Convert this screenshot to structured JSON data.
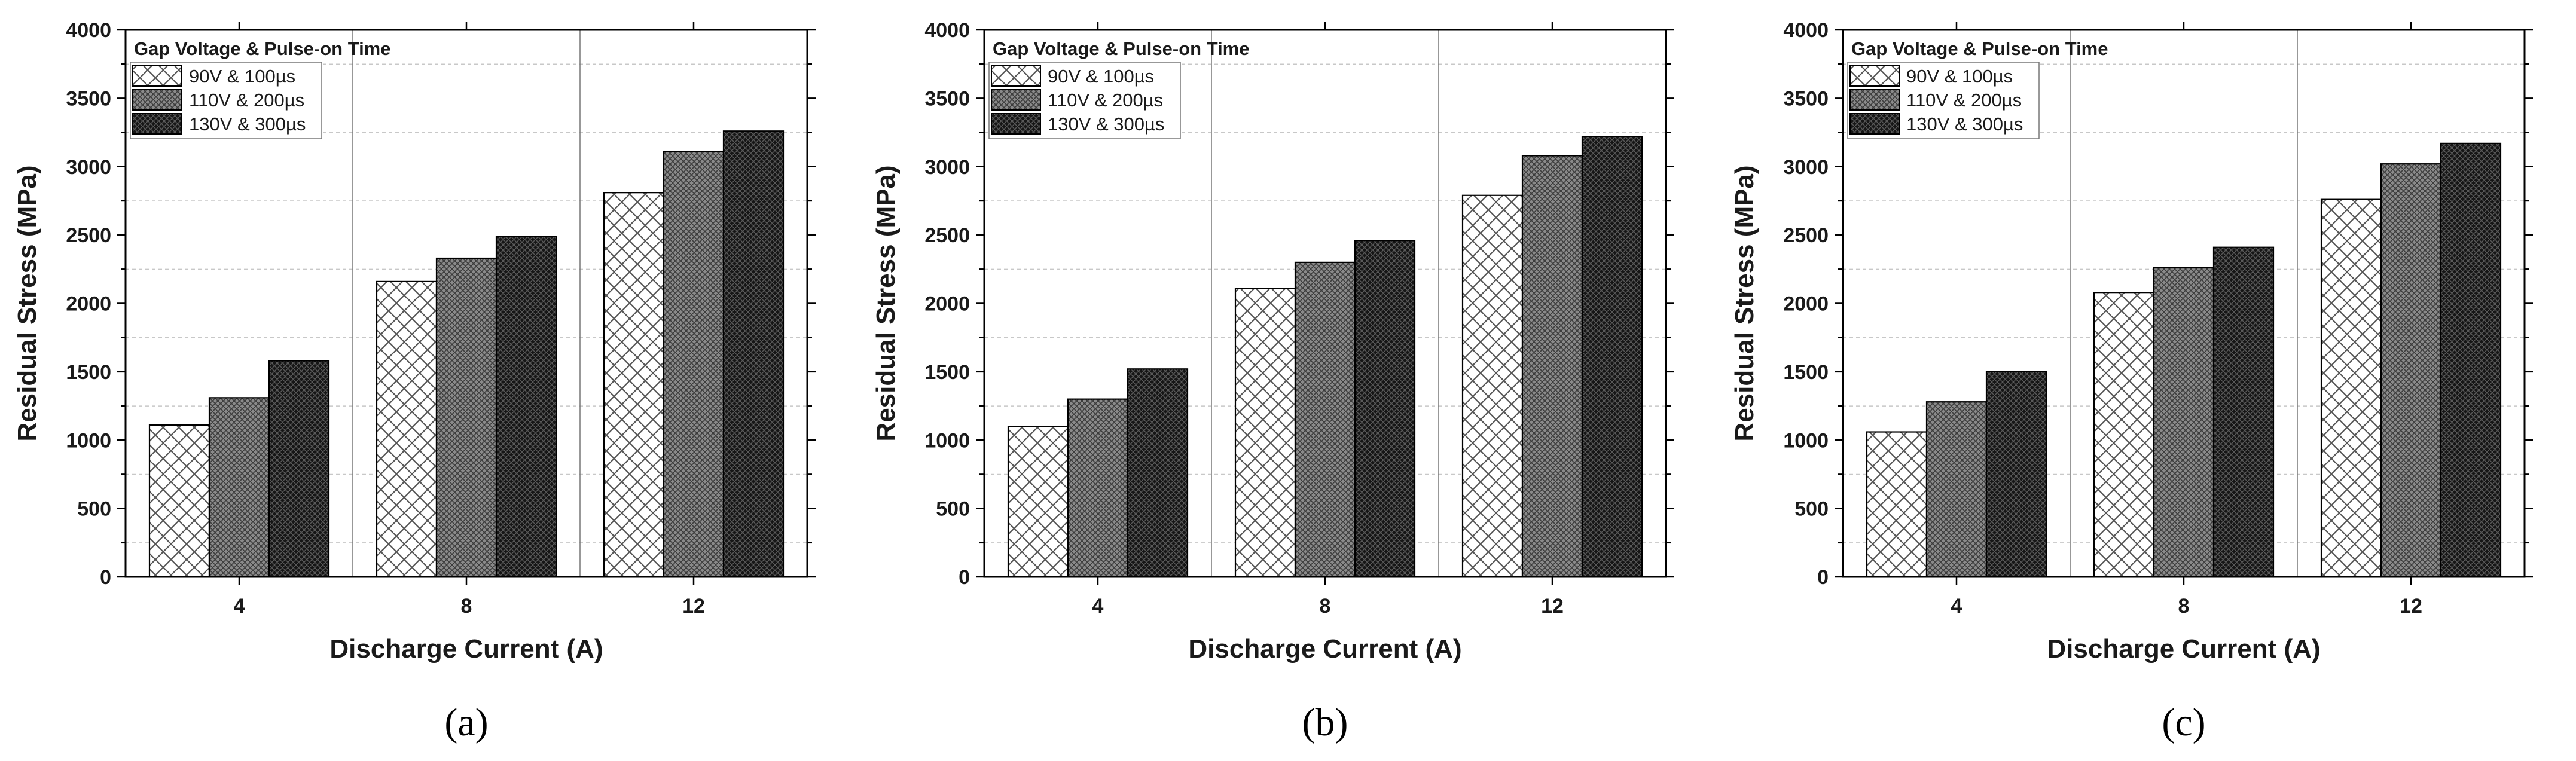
{
  "chart_data": [
    {
      "type": "bar",
      "caption": "(a)",
      "xlabel": "Discharge Current (A)",
      "ylabel": "Residual Stress (MPa)",
      "categories": [
        "4",
        "8",
        "12"
      ],
      "ylim": [
        0,
        4000
      ],
      "yticks": [
        "0",
        "500",
        "1000",
        "1500",
        "2000",
        "2500",
        "3000",
        "3500",
        "4000"
      ],
      "legend_title": "Gap Voltage & Pulse-on Time",
      "legend_position": "top-left",
      "series": [
        {
          "name": "90V & 100µs",
          "pattern": "crosshatch-light",
          "values": [
            1110,
            2160,
            2810
          ]
        },
        {
          "name": "110V & 200µs",
          "pattern": "mesh-gray",
          "values": [
            1310,
            2330,
            3110
          ]
        },
        {
          "name": "130V & 300µs",
          "pattern": "mesh-dark",
          "values": [
            1580,
            2490,
            3260
          ]
        }
      ]
    },
    {
      "type": "bar",
      "caption": "(b)",
      "xlabel": "Discharge Current (A)",
      "ylabel": "Residual Stress (MPa)",
      "categories": [
        "4",
        "8",
        "12"
      ],
      "ylim": [
        0,
        4000
      ],
      "yticks": [
        "0",
        "500",
        "1000",
        "1500",
        "2000",
        "2500",
        "3000",
        "3500",
        "4000"
      ],
      "legend_title": "Gap Voltage & Pulse-on Time",
      "legend_position": "top-left",
      "series": [
        {
          "name": "90V & 100µs",
          "pattern": "crosshatch-light",
          "values": [
            1100,
            2110,
            2790
          ]
        },
        {
          "name": "110V & 200µs",
          "pattern": "mesh-gray",
          "values": [
            1300,
            2300,
            3080
          ]
        },
        {
          "name": "130V & 300µs",
          "pattern": "mesh-dark",
          "values": [
            1520,
            2460,
            3220
          ]
        }
      ]
    },
    {
      "type": "bar",
      "caption": "(c)",
      "xlabel": "Discharge Current (A)",
      "ylabel": "Residual Stress (MPa)",
      "categories": [
        "4",
        "8",
        "12"
      ],
      "ylim": [
        0,
        4000
      ],
      "yticks": [
        "0",
        "500",
        "1000",
        "1500",
        "2000",
        "2500",
        "3000",
        "3500",
        "4000"
      ],
      "legend_title": "Gap Voltage & Pulse-on Time",
      "legend_position": "top-left",
      "series": [
        {
          "name": "90V & 100µs",
          "pattern": "crosshatch-light",
          "values": [
            1060,
            2080,
            2760
          ]
        },
        {
          "name": "110V & 200µs",
          "pattern": "mesh-gray",
          "values": [
            1280,
            2260,
            3020
          ]
        },
        {
          "name": "130V & 300µs",
          "pattern": "mesh-dark",
          "values": [
            1500,
            2410,
            3170
          ]
        }
      ]
    }
  ],
  "colors": {
    "bar_outline": "#000000",
    "crosshatch_line": "#555555",
    "mesh_gray_base": "#8a8a8a",
    "mesh_dark_base": "#2a2a2a",
    "minor_grid": "#c8c8c8"
  }
}
